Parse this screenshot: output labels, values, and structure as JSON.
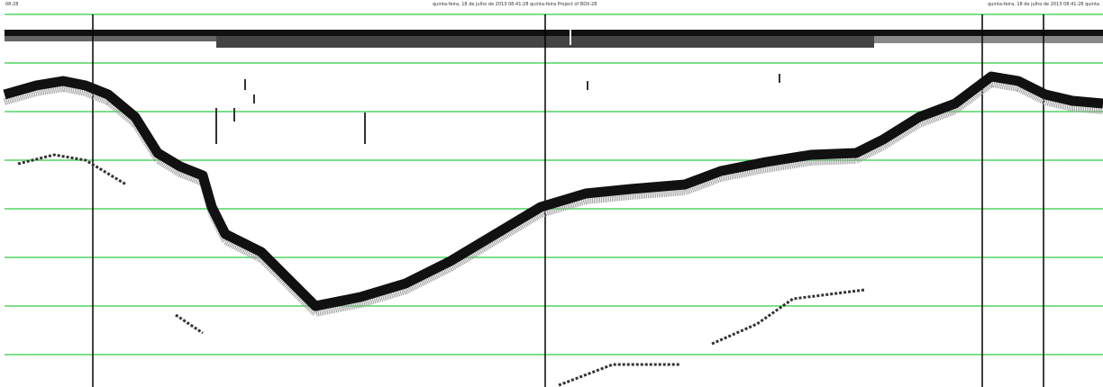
{
  "header": {
    "left": "08:28",
    "center": "quinta-feira, 18 de julho de 2013 08:41:28 quinta-feira Project of BDX-28",
    "right": "quinta-feira, 18 de julho de 2013 08:41:28 quinta"
  }
}
